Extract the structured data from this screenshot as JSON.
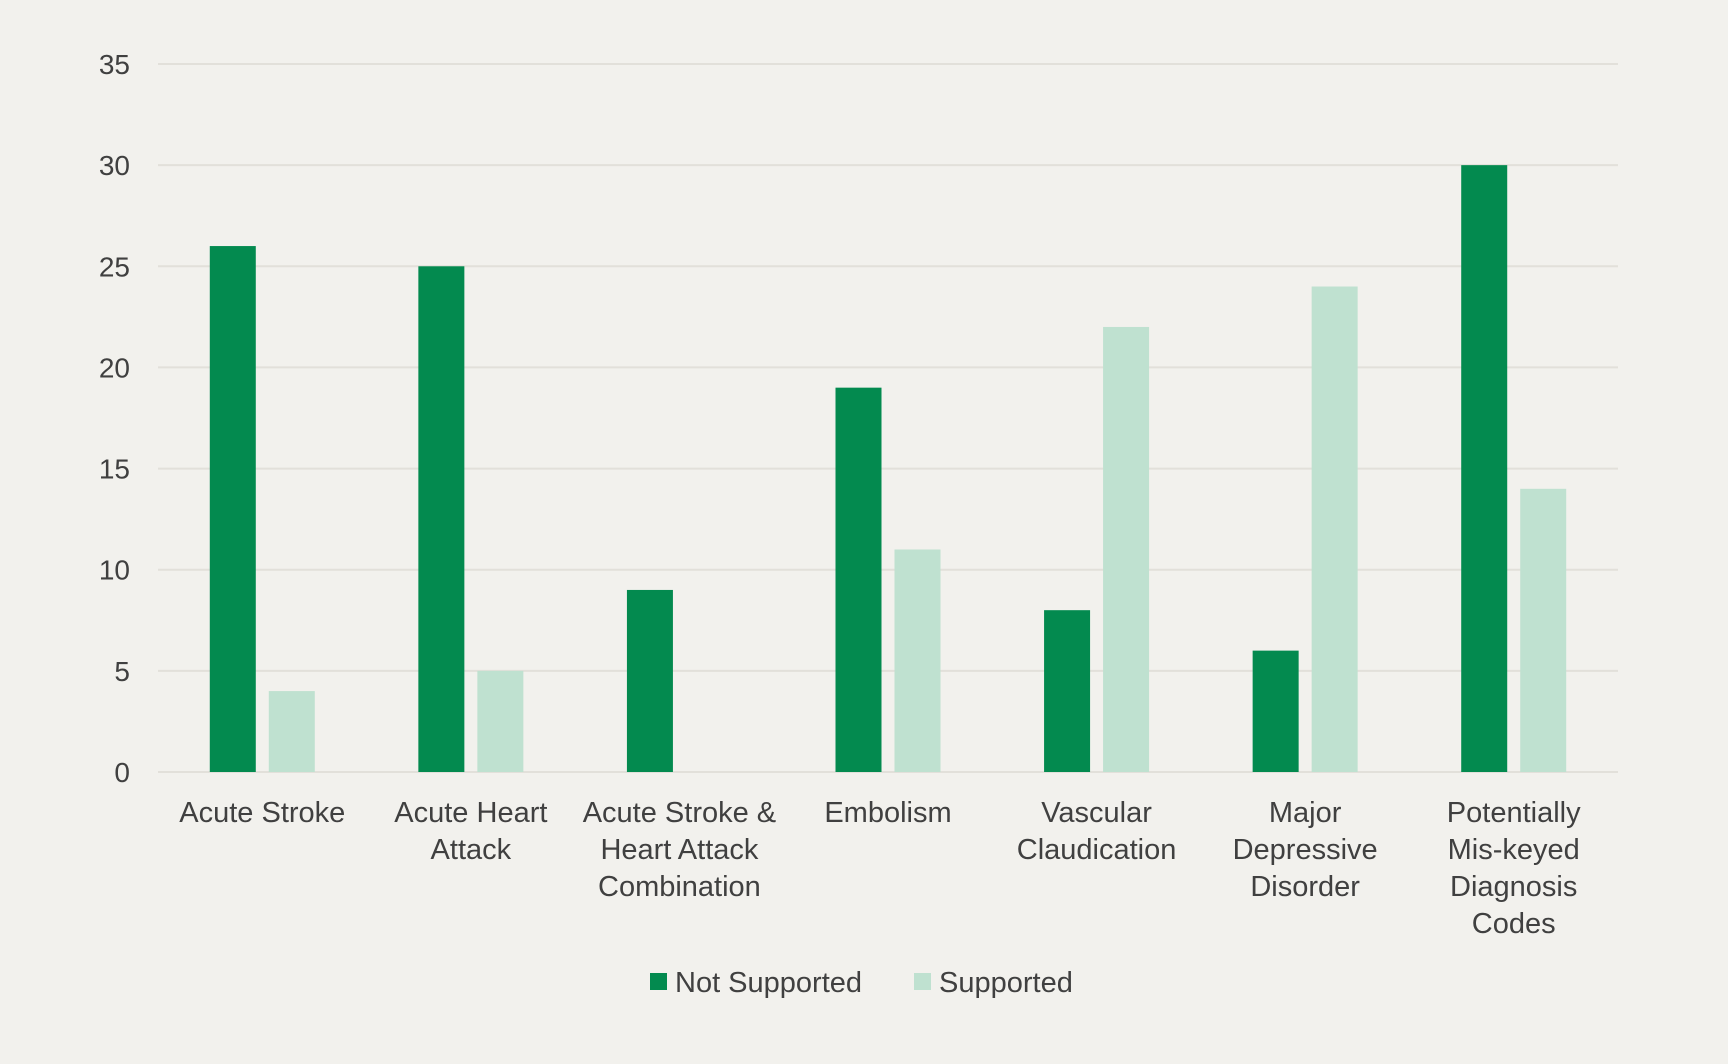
{
  "colors": {
    "background": "#f2f1ed",
    "not_supported": "#038a4f",
    "supported": "#bfe1d0",
    "gridline": "#e2e0da",
    "text": "#404040"
  },
  "chart_data": {
    "type": "bar",
    "title": "",
    "xlabel": "",
    "ylabel": "",
    "ylim": [
      0,
      35
    ],
    "yticks": [
      0,
      5,
      10,
      15,
      20,
      25,
      30,
      35
    ],
    "grid": true,
    "legend_position": "bottom-center",
    "categories": [
      [
        "Acute Stroke"
      ],
      [
        "Acute Heart",
        "Attack"
      ],
      [
        "Acute Stroke &",
        "Heart Attack",
        "Combination"
      ],
      [
        "Embolism"
      ],
      [
        "Vascular",
        "Claudication"
      ],
      [
        "Major",
        "Depressive",
        "Disorder"
      ],
      [
        "Potentially",
        "Mis-keyed",
        "Diagnosis",
        "Codes"
      ]
    ],
    "series": [
      {
        "name": "Not Supported",
        "color": "#038a4f",
        "values": [
          26,
          25,
          9,
          19,
          8,
          6,
          30
        ]
      },
      {
        "name": "Supported",
        "color": "#bfe1d0",
        "values": [
          4,
          5,
          0,
          11,
          22,
          24,
          14
        ]
      }
    ]
  }
}
